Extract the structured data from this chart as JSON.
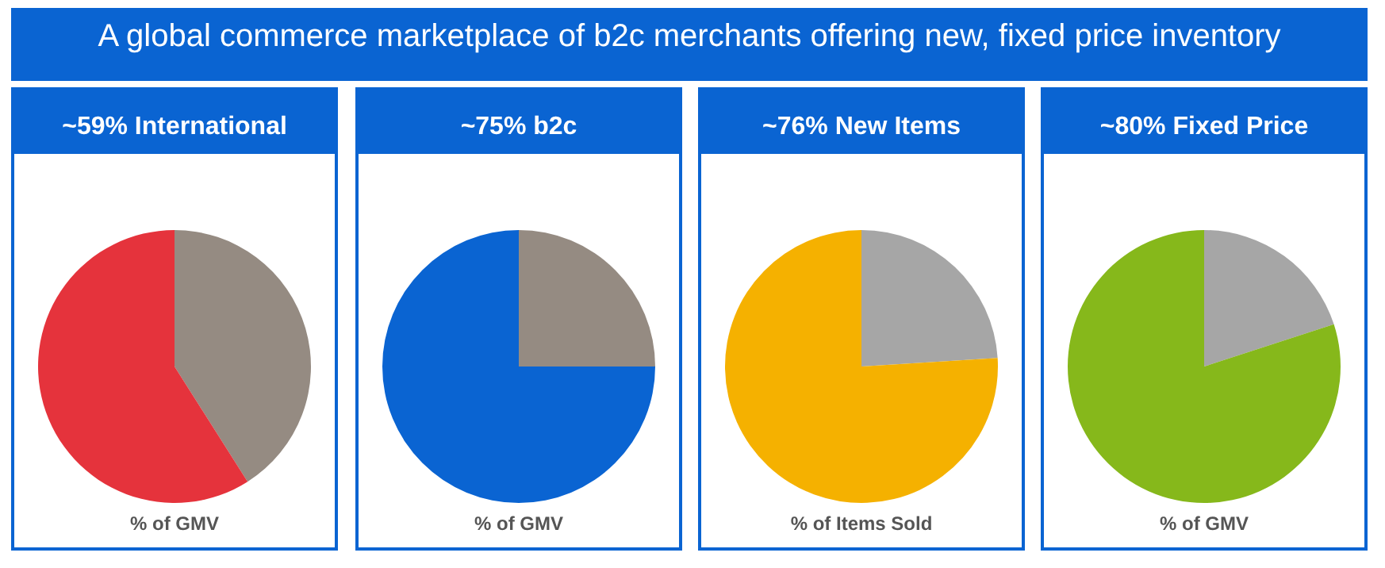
{
  "chart_data": [
    {
      "type": "other",
      "title": "A global commerce marketplace of b2c merchants offering new, fixed price inventory"
    },
    {
      "type": "pie",
      "title": "~59% International",
      "xlabel": "% of GMV",
      "categories": [
        null,
        null
      ],
      "values": [
        41,
        59
      ],
      "colors": [
        "#958b82",
        "#e5333c"
      ]
    },
    {
      "type": "pie",
      "title": "~75% b2c",
      "xlabel": "% of GMV",
      "categories": [
        null,
        null
      ],
      "values": [
        25,
        75
      ],
      "colors": [
        "#958b82",
        "#0a64d2"
      ]
    },
    {
      "type": "pie",
      "title": "~76% New Items",
      "xlabel": "% of Items Sold",
      "categories": [
        null,
        null
      ],
      "values": [
        24,
        76
      ],
      "colors": [
        "#a6a6a6",
        "#f5b100"
      ]
    },
    {
      "type": "pie",
      "title": "~80% Fixed Price",
      "xlabel": "% of GMV",
      "categories": [
        null,
        null
      ],
      "values": [
        20,
        80
      ],
      "colors": [
        "#a6a6a6",
        "#86b81b"
      ]
    }
  ]
}
